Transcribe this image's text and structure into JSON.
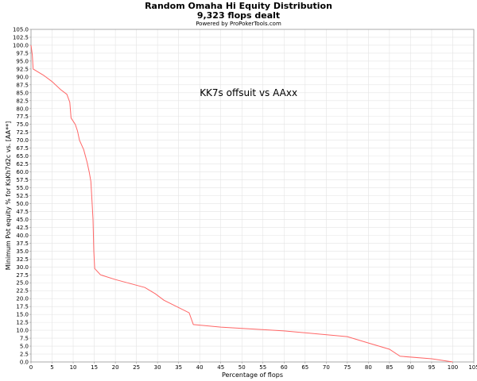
{
  "chart_data": {
    "type": "line",
    "title": "Random Omaha Hi Equity Distribution",
    "subtitle": "9,323 flops dealt",
    "credit": "Powered by ProPokerTools.com",
    "xlabel": "Percentage of flops",
    "ylabel": "Minimum Pot equity % for KsKh7d2c vs. [AA**]",
    "annotation": "KK7s offsuit vs AAxx",
    "xlim": [
      0,
      105
    ],
    "ylim": [
      0,
      105
    ],
    "xticks": [
      0,
      5,
      10,
      15,
      20,
      25,
      30,
      35,
      40,
      45,
      50,
      55,
      60,
      65,
      70,
      75,
      80,
      85,
      90,
      95,
      100,
      105
    ],
    "yticks": [
      0.0,
      2.5,
      5.0,
      7.5,
      10.0,
      12.5,
      15.0,
      17.5,
      20.0,
      22.5,
      25.0,
      27.5,
      30.0,
      32.5,
      35.0,
      37.5,
      40.0,
      42.5,
      45.0,
      47.5,
      50.0,
      52.5,
      55.0,
      57.5,
      60.0,
      62.5,
      65.0,
      67.5,
      70.0,
      72.5,
      75.0,
      77.5,
      80.0,
      82.5,
      85.0,
      87.5,
      90.0,
      92.5,
      95.0,
      97.5,
      100.0,
      102.5,
      105.0
    ],
    "grid": true,
    "line_color": "#ff6666",
    "series": [
      {
        "points": [
          [
            0,
            100
          ],
          [
            0.3,
            97
          ],
          [
            0.5,
            92.5
          ],
          [
            3,
            90.5
          ],
          [
            5,
            88.5
          ],
          [
            7,
            86
          ],
          [
            8.5,
            84.5
          ],
          [
            9.2,
            82
          ],
          [
            9.5,
            77
          ],
          [
            10.5,
            75
          ],
          [
            11,
            73
          ],
          [
            11.5,
            70
          ],
          [
            12.5,
            67
          ],
          [
            13.3,
            63
          ],
          [
            13.8,
            60
          ],
          [
            14.2,
            57
          ],
          [
            14.5,
            50
          ],
          [
            14.7,
            45
          ],
          [
            14.8,
            40
          ],
          [
            14.9,
            35
          ],
          [
            15,
            32
          ],
          [
            15.1,
            29.5
          ],
          [
            16.5,
            27.5
          ],
          [
            20,
            26
          ],
          [
            27,
            23.5
          ],
          [
            29.5,
            21.5
          ],
          [
            31.5,
            19.5
          ],
          [
            37.5,
            15.5
          ],
          [
            38.5,
            11.8
          ],
          [
            45,
            11
          ],
          [
            60,
            9.8
          ],
          [
            75,
            8
          ],
          [
            80,
            6
          ],
          [
            85,
            4
          ],
          [
            87.5,
            1.8
          ],
          [
            95,
            1
          ],
          [
            100,
            0
          ]
        ]
      }
    ]
  }
}
